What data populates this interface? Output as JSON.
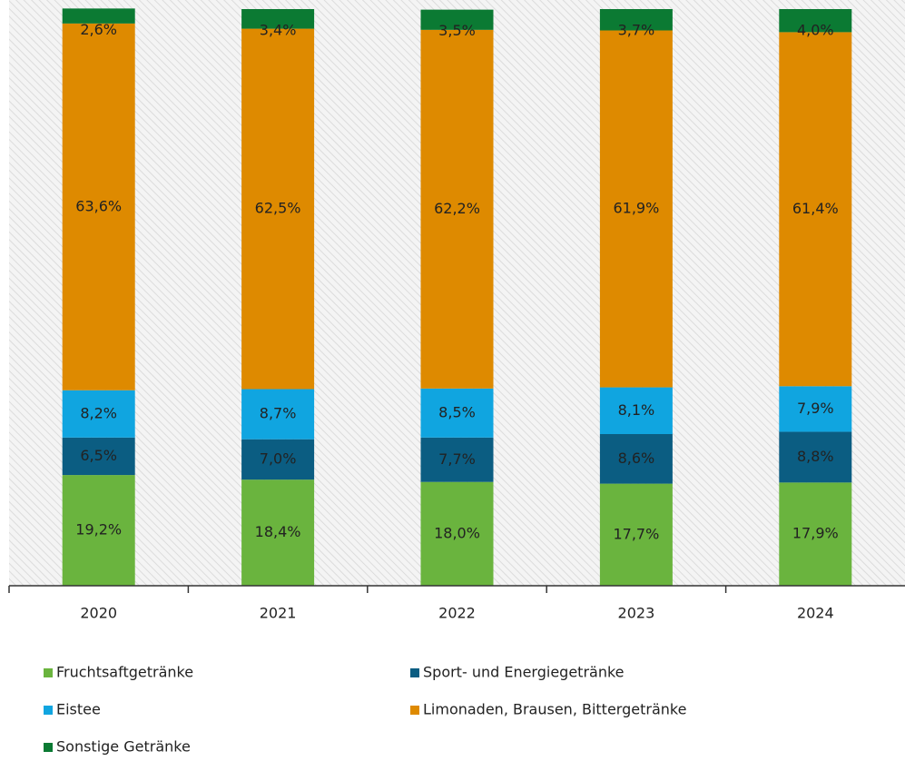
{
  "chart_data": {
    "type": "stacked_bar",
    "categories": [
      "2020",
      "2021",
      "2022",
      "2023",
      "2024"
    ],
    "ylim": [
      0,
      100
    ],
    "series": [
      {
        "name": "Fruchtsaftgetränke",
        "color": "#6ab43e",
        "values": [
          19.2,
          18.4,
          18.0,
          17.7,
          17.9
        ],
        "value_labels": [
          "19,2%",
          "18,4%",
          "18,0%",
          "17,7%",
          "17,9%"
        ]
      },
      {
        "name": "Sport- und Energiegetränke",
        "color": "#0b5d82",
        "values": [
          6.5,
          7.0,
          7.7,
          8.6,
          8.8
        ],
        "value_labels": [
          "6,5%",
          "7,0%",
          "7,7%",
          "8,6%",
          "8,8%"
        ]
      },
      {
        "name": "Eistee",
        "color": "#10a5e0",
        "values": [
          8.2,
          8.7,
          8.5,
          8.1,
          7.9
        ],
        "value_labels": [
          "8,2%",
          "8,7%",
          "8,5%",
          "8,1%",
          "7,9%"
        ]
      },
      {
        "name": "Limonaden, Brausen, Bittergetränke",
        "color": "#de8a00",
        "values": [
          63.6,
          62.5,
          62.2,
          61.9,
          61.4
        ],
        "value_labels": [
          "63,6%",
          "62,5%",
          "62,2%",
          "61,9%",
          "61,4%"
        ]
      },
      {
        "name": "Sonstige Getränke",
        "color": "#0b7a33",
        "values": [
          2.6,
          3.4,
          3.5,
          3.7,
          4.0
        ],
        "value_labels": [
          "2,6%",
          "3,4%",
          "3,5%",
          "3,7%",
          "4,0%"
        ]
      }
    ]
  }
}
